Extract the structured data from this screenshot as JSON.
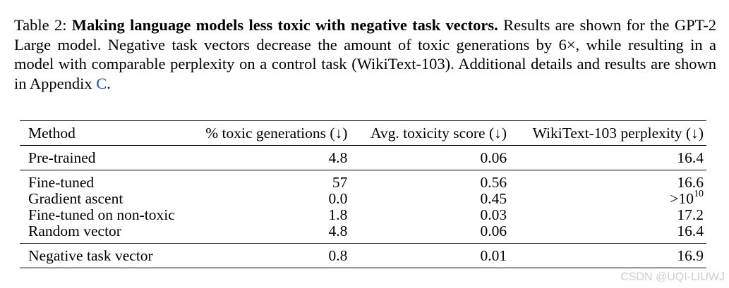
{
  "caption": {
    "label": "Table 2:",
    "title": "Making language models less toxic with negative task vectors.",
    "body_before_link": "Results are shown for the GPT-2 Large model. Negative task vectors decrease the amount of toxic generations by 6×, while resulting in a model with comparable perplexity on a control task (WikiText-103). Additional details and results are shown in Appendix",
    "link_text": "C",
    "body_after_link": "."
  },
  "table": {
    "headers": {
      "method": "Method",
      "toxic": "% toxic generations (↓)",
      "score": "Avg. toxicity score (↓)",
      "perplexity": "WikiText-103 perplexity (↓)"
    },
    "pretrained": {
      "method": "Pre-trained",
      "toxic": "4.8",
      "score": "0.06",
      "perplexity": "16.4"
    },
    "baselines": [
      {
        "method": "Fine-tuned",
        "toxic": "57",
        "score": "0.56",
        "perplexity": "16.6"
      },
      {
        "method": "Gradient ascent",
        "toxic": "0.0",
        "score": "0.45",
        "perplexity_base": ">10",
        "perplexity_exp": "10"
      },
      {
        "method": "Fine-tuned on non-toxic",
        "toxic": "1.8",
        "score": "0.03",
        "perplexity": "17.2"
      },
      {
        "method": "Random vector",
        "toxic": "4.8",
        "score": "0.06",
        "perplexity": "16.4"
      }
    ],
    "ours": {
      "method": "Negative task vector",
      "toxic": "0.8",
      "score": "0.01",
      "perplexity": "16.9"
    }
  },
  "watermark": "CSDN @UQI-LIUWJ"
}
